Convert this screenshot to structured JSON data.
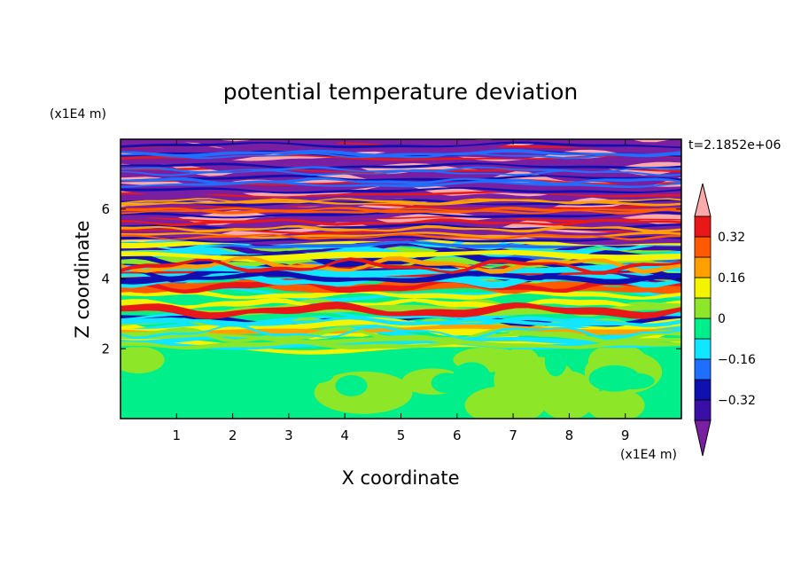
{
  "chart_data": {
    "type": "heatmap",
    "title": "potential temperature deviation",
    "xlabel": "X coordinate",
    "ylabel": "Z coordinate",
    "x_unit": "(x1E4 m)",
    "y_unit": "(x1E4 m)",
    "time_label": "t=2.1852e+06",
    "xlim": [
      0,
      10
    ],
    "ylim": [
      0,
      8
    ],
    "x_ticks": [
      "1",
      "2",
      "3",
      "4",
      "5",
      "6",
      "7",
      "8",
      "9"
    ],
    "y_ticks": [
      "2",
      "4",
      "6"
    ],
    "colorbar": {
      "levels": [
        -0.4,
        -0.32,
        -0.24,
        -0.16,
        -0.08,
        0,
        0.08,
        0.16,
        0.24,
        0.32,
        0.4
      ],
      "labels": [
        "0.32",
        "0.16",
        "0",
        "−0.16",
        "−0.32"
      ],
      "colors": [
        "#7b1fa2",
        "#3a0fa8",
        "#1010b0",
        "#1f6fff",
        "#10e6ff",
        "#00ef8a",
        "#8ee628",
        "#f4f400",
        "#ffa000",
        "#ff5a00",
        "#e81818",
        "#ffaaaa"
      ]
    }
  }
}
